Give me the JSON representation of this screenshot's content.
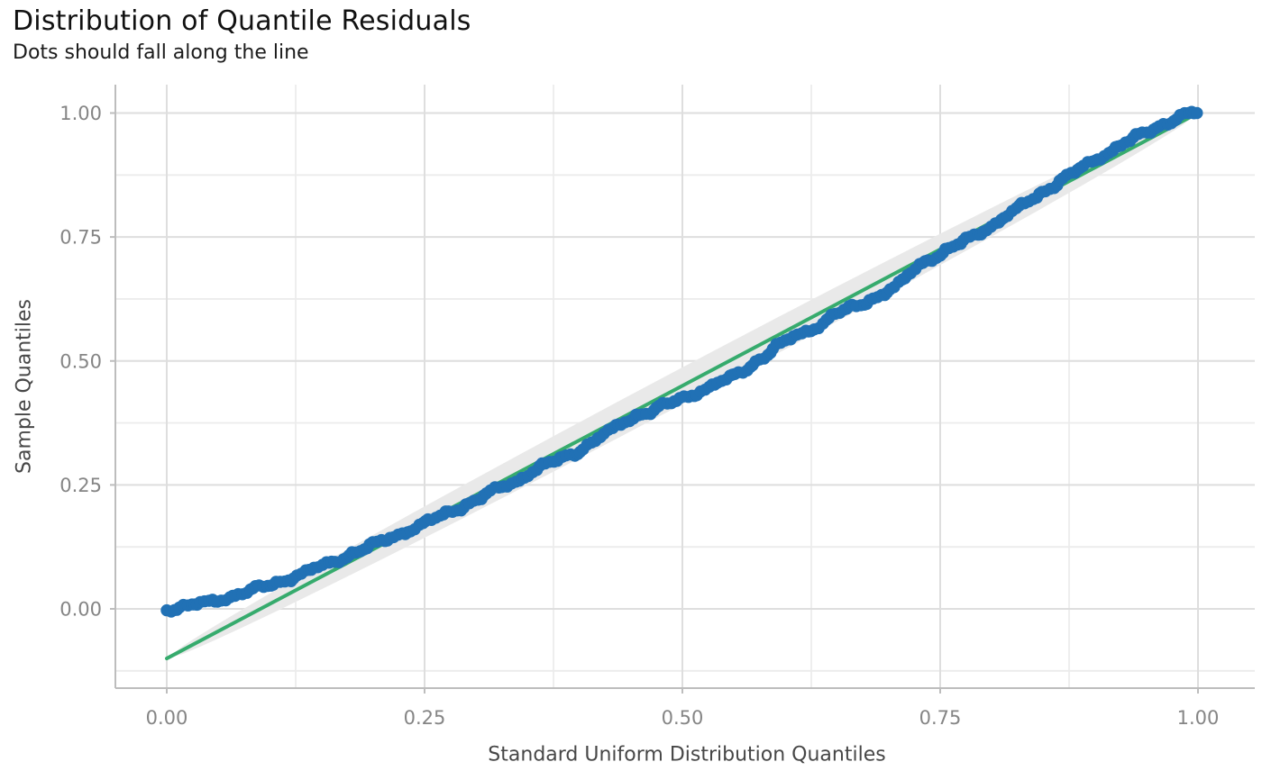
{
  "chart_data": {
    "type": "scatter",
    "title": "Distribution of Quantile Residuals",
    "subtitle": "Dots should fall along the line",
    "xlabel": "Standard Uniform Distribution Quantiles",
    "ylabel": "Sample Quantiles",
    "x_axis": {
      "tick_values": [
        0,
        0.25,
        0.5,
        0.75,
        1
      ],
      "tick_labels": [
        "0.00",
        "0.25",
        "0.50",
        "0.75",
        "1.00"
      ],
      "minor_tick_values": [
        0.125,
        0.375,
        0.625,
        0.875
      ],
      "range": [
        -0.05,
        1.055
      ]
    },
    "y_axis": {
      "tick_values": [
        0,
        0.25,
        0.5,
        0.75,
        1
      ],
      "tick_labels": [
        "0.00",
        "0.25",
        "0.50",
        "0.75",
        "1.00"
      ],
      "minor_tick_values": [
        -0.125,
        0.125,
        0.375,
        0.625,
        0.875
      ],
      "range": [
        -0.16,
        1.058
      ]
    },
    "grid": "on",
    "legend": "none",
    "ref_line": {
      "x": [
        0,
        1
      ],
      "y": [
        -0.1,
        1.0
      ]
    },
    "band": {
      "follows": "ref_line",
      "max_half_width": 0.037,
      "shape_exponent": 0.55
    },
    "sample_curve": [
      [
        0.0,
        0.0
      ],
      [
        0.01,
        0.002
      ],
      [
        0.025,
        0.007
      ],
      [
        0.04,
        0.013
      ],
      [
        0.06,
        0.024
      ],
      [
        0.08,
        0.036
      ],
      [
        0.1,
        0.048
      ],
      [
        0.12,
        0.062
      ],
      [
        0.14,
        0.078
      ],
      [
        0.16,
        0.094
      ],
      [
        0.18,
        0.112
      ],
      [
        0.2,
        0.128
      ],
      [
        0.22,
        0.146
      ],
      [
        0.24,
        0.163
      ],
      [
        0.26,
        0.182
      ],
      [
        0.28,
        0.201
      ],
      [
        0.3,
        0.219
      ],
      [
        0.32,
        0.241
      ],
      [
        0.34,
        0.259
      ],
      [
        0.36,
        0.284
      ],
      [
        0.38,
        0.301
      ],
      [
        0.4,
        0.319
      ],
      [
        0.42,
        0.346
      ],
      [
        0.44,
        0.372
      ],
      [
        0.455,
        0.391
      ],
      [
        0.47,
        0.399
      ],
      [
        0.49,
        0.416
      ],
      [
        0.51,
        0.433
      ],
      [
        0.53,
        0.451
      ],
      [
        0.55,
        0.469
      ],
      [
        0.57,
        0.496
      ],
      [
        0.59,
        0.526
      ],
      [
        0.61,
        0.551
      ],
      [
        0.63,
        0.569
      ],
      [
        0.65,
        0.596
      ],
      [
        0.67,
        0.612
      ],
      [
        0.69,
        0.631
      ],
      [
        0.705,
        0.646
      ],
      [
        0.718,
        0.669
      ],
      [
        0.73,
        0.696
      ],
      [
        0.745,
        0.711
      ],
      [
        0.76,
        0.726
      ],
      [
        0.78,
        0.749
      ],
      [
        0.8,
        0.773
      ],
      [
        0.82,
        0.8
      ],
      [
        0.84,
        0.828
      ],
      [
        0.86,
        0.855
      ],
      [
        0.88,
        0.88
      ],
      [
        0.9,
        0.905
      ],
      [
        0.92,
        0.93
      ],
      [
        0.94,
        0.951
      ],
      [
        0.955,
        0.966
      ],
      [
        0.97,
        0.981
      ],
      [
        0.985,
        0.995
      ],
      [
        0.995,
        0.999
      ],
      [
        1.0,
        1.0
      ]
    ],
    "n_points_rendered": 300,
    "colors": {
      "dots": "#2171b5",
      "line": "#36ab6d",
      "band": "#e9e9e9",
      "grid_major": "#dedede",
      "grid_minor": "#ececec",
      "axis_line": "#bdbdbd",
      "tick_label": "#858585",
      "axis_title": "#474747",
      "title": "#111111",
      "subtitle": "#1c1c1c"
    }
  }
}
